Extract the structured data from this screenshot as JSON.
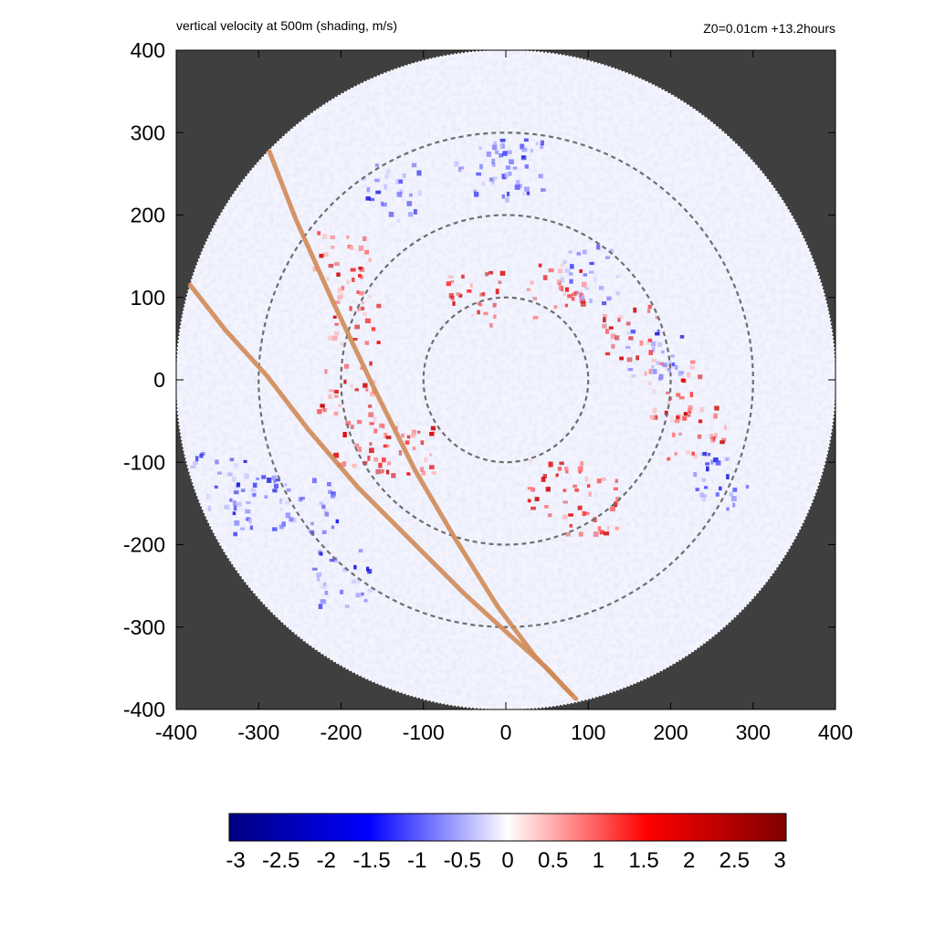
{
  "chart_data": {
    "type": "heatmap",
    "title_left": "vertical velocity at 500m (shading, m/s)",
    "title_right": "Z0=0.01cm  +13.2hours",
    "xlabel": "",
    "ylabel": "",
    "xlim": [
      -400,
      400
    ],
    "ylim": [
      -400,
      400
    ],
    "x_ticks": [
      -400,
      -300,
      -200,
      -100,
      0,
      100,
      200,
      300,
      400
    ],
    "y_ticks": [
      -400,
      -300,
      -200,
      -100,
      0,
      100,
      200,
      300,
      400
    ],
    "x_tick_labels": [
      "-400",
      "-300",
      "-200",
      "-100",
      "0",
      "100",
      "200",
      "300",
      "400"
    ],
    "y_tick_labels": [
      "-400",
      "-300",
      "-200",
      "-100",
      "0",
      "100",
      "200",
      "300",
      "400"
    ],
    "domain_radius": 400,
    "range_rings_radii": [
      100,
      200,
      300
    ],
    "tracks": [
      {
        "points": [
          [
            -287,
            277
          ],
          [
            -255,
            195
          ],
          [
            -210,
            95
          ],
          [
            -160,
            -10
          ],
          [
            -110,
            -110
          ],
          [
            -60,
            -195
          ],
          [
            -10,
            -275
          ],
          [
            35,
            -335
          ],
          [
            70,
            -372
          ],
          [
            85,
            -387
          ]
        ]
      },
      {
        "points": [
          [
            -383,
            115
          ],
          [
            -340,
            60
          ],
          [
            -290,
            5
          ],
          [
            -240,
            -60
          ],
          [
            -180,
            -130
          ],
          [
            -110,
            -200
          ],
          [
            -50,
            -260
          ],
          [
            5,
            -310
          ],
          [
            50,
            -350
          ],
          [
            80,
            -382
          ]
        ]
      }
    ],
    "colorbar": {
      "min": -3,
      "max": 3,
      "ticks": [
        -3,
        -2.5,
        -2,
        -1.5,
        -1,
        -0.5,
        0,
        0.5,
        1,
        1.5,
        2,
        2.5,
        3
      ],
      "tick_labels": [
        "-3",
        "-2.5",
        "-2",
        "-1.5",
        "-1",
        "-0.5",
        "0",
        "0.5",
        "1",
        "1.5",
        "2",
        "2.5",
        "3"
      ],
      "colors": [
        "#00007f",
        "#0000ff",
        "#ffffff",
        "#ff0000",
        "#7f0000"
      ]
    },
    "colors": {
      "background_outside_domain": "#3f3f3f",
      "domain_fill": "#f3f4fd",
      "ring_color": "#6e6e6e",
      "track_color": "#d08a55"
    },
    "features": {
      "positive_band": [
        [
          -200,
          150
        ],
        [
          -190,
          80
        ],
        [
          -195,
          -10
        ],
        [
          -175,
          -75
        ],
        [
          -120,
          -80
        ],
        [
          -40,
          100
        ],
        [
          60,
          110
        ],
        [
          150,
          60
        ],
        [
          200,
          -10
        ],
        [
          230,
          -60
        ],
        [
          100,
          -150
        ],
        [
          60,
          -130
        ]
      ],
      "negative_band": [
        [
          -240,
          -150
        ],
        [
          -300,
          -150
        ],
        [
          -350,
          -120
        ],
        [
          -140,
          230
        ],
        [
          -30,
          250
        ],
        [
          10,
          260
        ],
        [
          100,
          130
        ],
        [
          180,
          30
        ],
        [
          260,
          -120
        ],
        [
          -200,
          -240
        ]
      ]
    }
  }
}
